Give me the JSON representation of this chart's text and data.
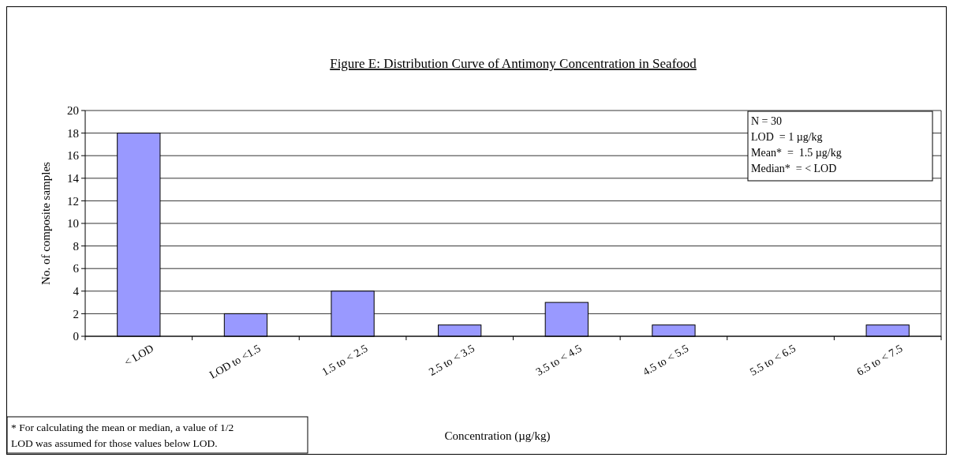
{
  "chart_data": {
    "type": "bar",
    "title": "Figure E: Distribution Curve of Antimony Concentration in Seafood",
    "xlabel": "Concentration (µg/kg)",
    "ylabel": "No. of composite samples",
    "categories": [
      "< LOD",
      "LOD to <1.5",
      "1.5 to < 2.5",
      "2.5 to < 3.5",
      "3.5 to < 4.5",
      "4.5 to < 5.5",
      "5.5 to < 6.5",
      "6.5 to < 7.5"
    ],
    "values": [
      18,
      2,
      4,
      1,
      3,
      1,
      0,
      1
    ],
    "color": "#9999ff",
    "ylim": [
      0,
      20
    ],
    "yticks": [
      0,
      2,
      4,
      6,
      8,
      10,
      12,
      14,
      16,
      18,
      20
    ],
    "grid": "y",
    "annotations": [
      "N = 30",
      "LOD  = 1 µg/kg",
      "Mean*  =  1.5 µg/kg",
      "Median*  = < LOD",
      "* For calculating the mean or median, a value of 1/2 LOD was assumed for those values below LOD."
    ]
  }
}
